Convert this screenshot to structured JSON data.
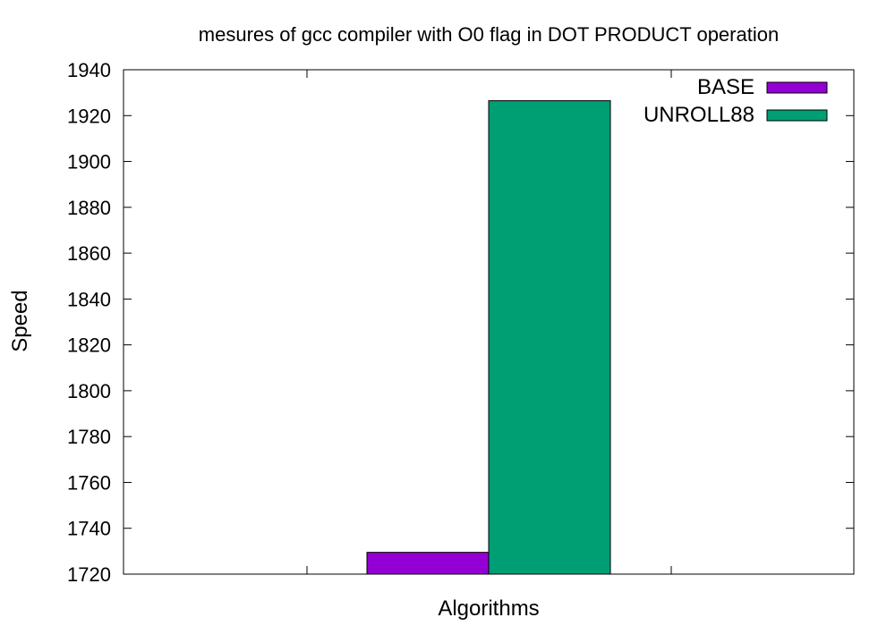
{
  "chart_data": {
    "type": "bar",
    "title": "mesures of gcc compiler with O0 flag in DOT PRODUCT operation",
    "xlabel": "Algorithms",
    "ylabel": "Speed",
    "ylim": [
      1720,
      1940
    ],
    "yticks": [
      1720,
      1740,
      1760,
      1780,
      1800,
      1820,
      1840,
      1860,
      1880,
      1900,
      1920,
      1940
    ],
    "grid": false,
    "legend_position": "top-right",
    "categories": [
      ""
    ],
    "series": [
      {
        "name": "BASE",
        "values": [
          1729.5
        ],
        "color": "#9400d3"
      },
      {
        "name": "UNROLL88",
        "values": [
          1926.5
        ],
        "color": "#009e73"
      }
    ]
  }
}
